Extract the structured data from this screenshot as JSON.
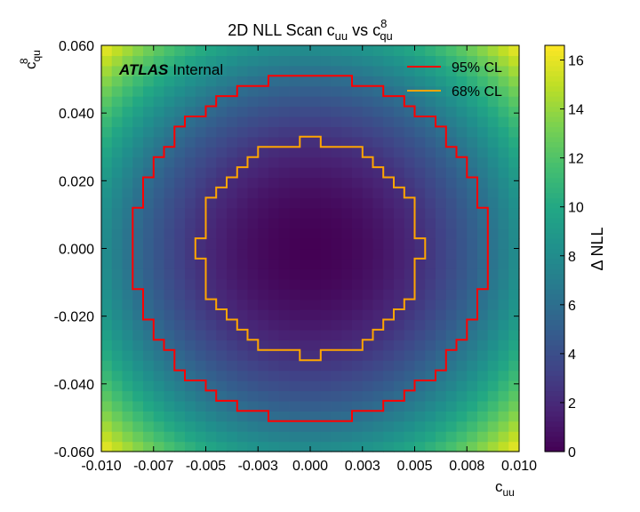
{
  "chart_data": {
    "type": "heatmap",
    "title_main": "2D NLL Scan c",
    "title_sub1": "uu",
    "title_mid": " vs c",
    "title_sup": "8",
    "title_sub2": "qu",
    "xlabel_main": "c",
    "xlabel_sub": "uu",
    "ylabel_main": "c",
    "ylabel_sub": "qu",
    "ylabel_sup": "8",
    "colorbar_label": "Δ NLL",
    "watermark_bold": "ATLAS",
    "watermark_normal": "Internal",
    "xlim": [
      -0.01,
      0.01
    ],
    "ylim": [
      -0.06,
      0.06
    ],
    "zlim": [
      0,
      16.6
    ],
    "x_ticks": [
      {
        "value": -0.01,
        "label": "-0.010"
      },
      {
        "value": -0.0075,
        "label": "-0.007"
      },
      {
        "value": -0.005,
        "label": "-0.005"
      },
      {
        "value": -0.0025,
        "label": "-0.003"
      },
      {
        "value": 0.0,
        "label": "0.000"
      },
      {
        "value": 0.0025,
        "label": "0.003"
      },
      {
        "value": 0.005,
        "label": "0.005"
      },
      {
        "value": 0.0075,
        "label": "0.008"
      },
      {
        "value": 0.01,
        "label": "0.010"
      }
    ],
    "y_ticks": [
      {
        "value": -0.06,
        "label": "-0.060"
      },
      {
        "value": -0.04,
        "label": "-0.040"
      },
      {
        "value": -0.02,
        "label": "-0.020"
      },
      {
        "value": 0.0,
        "label": "0.000"
      },
      {
        "value": 0.02,
        "label": "0.020"
      },
      {
        "value": 0.04,
        "label": "0.040"
      },
      {
        "value": 0.06,
        "label": "0.060"
      }
    ],
    "z_ticks": [
      0,
      2,
      4,
      6,
      8,
      10,
      12,
      14,
      16
    ],
    "z_tick_labels": [
      "0",
      "2",
      "4",
      "6",
      "8",
      "10",
      "12",
      "14",
      "16"
    ],
    "grid": {
      "nx": 40,
      "ny": 40,
      "model": "dnll = 8.3*((x/0.010)^2 + (y/0.060)^2)",
      "sigma_x": 0.0049,
      "sigma_y": 0.0294
    },
    "contours": [
      {
        "name": "95% CL",
        "level": 5.99,
        "color": "#ff0000"
      },
      {
        "name": "68% CL",
        "level": 2.3,
        "color": "#ffa500"
      }
    ],
    "legend_position": "top-right"
  }
}
